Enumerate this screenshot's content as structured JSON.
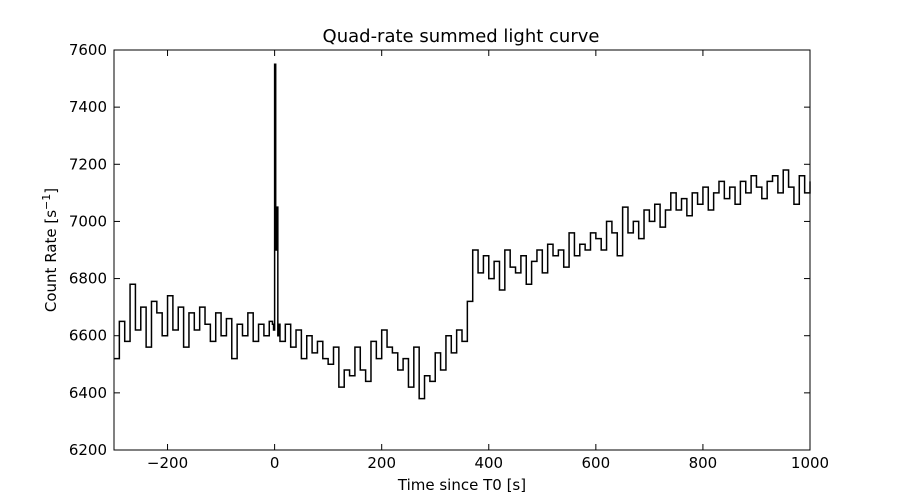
{
  "chart_data": {
    "type": "line",
    "title": "Quad-rate summed light curve",
    "xlabel": "Time since T0 [s]",
    "ylabel": "Count Rate [s",
    "ylabel_sup": "−1",
    "ylabel_end": "]",
    "xlim": [
      -300,
      1000
    ],
    "ylim": [
      6200,
      7600
    ],
    "xticks": [
      -200,
      0,
      200,
      400,
      600,
      800,
      1000
    ],
    "xtick_labels": [
      "−200",
      "0",
      "200",
      "400",
      "600",
      "800",
      "1000"
    ],
    "yticks": [
      6200,
      6400,
      6600,
      6800,
      7000,
      7200,
      7400,
      7600
    ],
    "ytick_labels": [
      "6200",
      "6400",
      "6600",
      "6800",
      "7000",
      "7200",
      "7400",
      "7600"
    ],
    "grid": false,
    "line_color": "#000000",
    "series": [
      {
        "x": [
          -300,
          -290,
          -280,
          -270,
          -260,
          -250,
          -240,
          -230,
          -220,
          -210,
          -200,
          -190,
          -180,
          -170,
          -160,
          -150,
          -140,
          -130,
          -120,
          -110,
          -100,
          -90,
          -80,
          -70,
          -60,
          -50,
          -40,
          -30,
          -20,
          -10,
          -4,
          -2,
          0,
          2,
          4,
          6,
          8,
          10,
          20,
          30,
          40,
          50,
          60,
          70,
          80,
          90,
          100,
          110,
          120,
          130,
          140,
          150,
          160,
          170,
          180,
          190,
          200,
          210,
          220,
          230,
          240,
          250,
          260,
          270,
          280,
          290,
          300,
          310,
          320,
          330,
          340,
          350,
          360,
          370,
          380,
          390,
          400,
          410,
          420,
          430,
          440,
          450,
          460,
          470,
          480,
          490,
          500,
          510,
          520,
          530,
          540,
          550,
          560,
          570,
          580,
          590,
          600,
          610,
          620,
          630,
          640,
          650,
          660,
          670,
          680,
          690,
          700,
          710,
          720,
          730,
          740,
          750,
          760,
          770,
          780,
          790,
          800,
          810,
          820,
          830,
          840,
          850,
          860,
          870,
          880,
          890,
          900,
          910,
          920,
          930,
          940,
          950,
          960,
          970,
          980,
          990,
          1000
        ],
        "y": [
          6520,
          6650,
          6580,
          6780,
          6620,
          6700,
          6560,
          6720,
          6680,
          6600,
          6740,
          6620,
          6700,
          6560,
          6680,
          6620,
          6700,
          6640,
          6580,
          6680,
          6600,
          6660,
          6520,
          6640,
          6600,
          6680,
          6580,
          6640,
          6600,
          6650,
          6640,
          6620,
          7550,
          6900,
          7050,
          6600,
          6640,
          6580,
          6640,
          6560,
          6620,
          6520,
          6600,
          6540,
          6580,
          6520,
          6500,
          6560,
          6420,
          6480,
          6460,
          6560,
          6480,
          6440,
          6580,
          6520,
          6620,
          6560,
          6540,
          6480,
          6520,
          6420,
          6560,
          6380,
          6460,
          6440,
          6540,
          6480,
          6600,
          6540,
          6620,
          6580,
          6720,
          6900,
          6820,
          6880,
          6800,
          6860,
          6760,
          6900,
          6840,
          6820,
          6880,
          6780,
          6860,
          6900,
          6820,
          6920,
          6880,
          6900,
          6840,
          6960,
          6880,
          6920,
          6900,
          6960,
          6940,
          6900,
          7000,
          6960,
          6880,
          7050,
          6960,
          7000,
          6940,
          7040,
          7000,
          7060,
          6980,
          7040,
          7100,
          7040,
          7080,
          7020,
          7100,
          7060,
          7120,
          7040,
          7100,
          7140,
          7080,
          7120,
          7060,
          7140,
          7100,
          7160,
          7120,
          7080,
          7140,
          7160,
          7100,
          7180,
          7120,
          7060,
          7160,
          7100,
          7140
        ]
      }
    ]
  }
}
